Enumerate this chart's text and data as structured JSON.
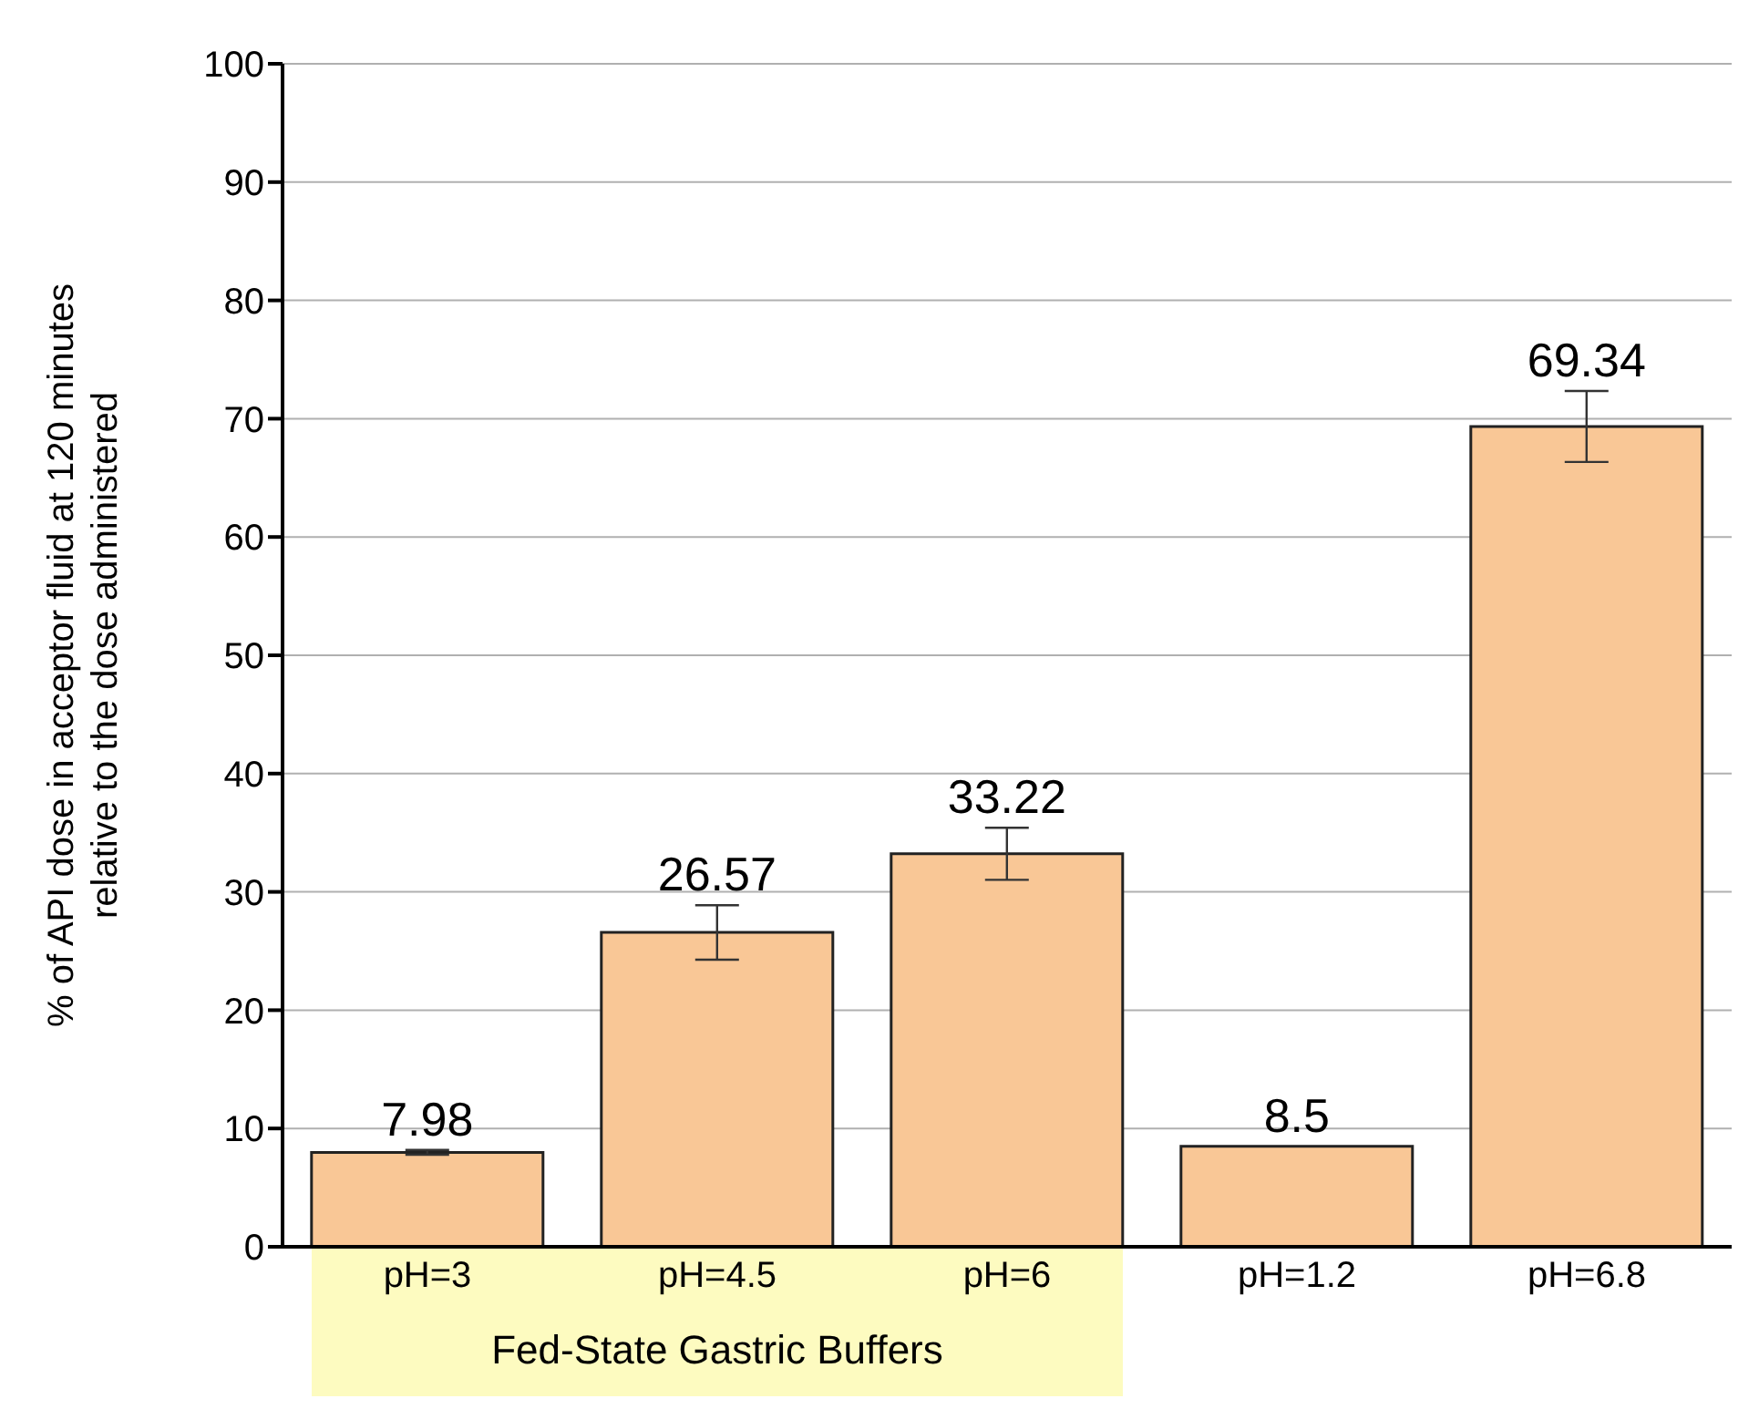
{
  "chart_data": {
    "type": "bar",
    "ylabel": "% of API dose in acceptor fluid at 120 minutes\nrelative to the dose administered",
    "categories": [
      "pH=3",
      "pH=4.5",
      "pH=6",
      "pH=1.2",
      "pH=6.8"
    ],
    "values": [
      7.98,
      26.57,
      33.22,
      8.5,
      69.34
    ],
    "errors": [
      0.2,
      2.3,
      2.2,
      null,
      3.0
    ],
    "color": "#f9c796",
    "data_labels": true,
    "ylim": [
      0,
      100
    ],
    "yticks": [
      0,
      10,
      20,
      30,
      40,
      50,
      60,
      70,
      80,
      90,
      100
    ],
    "grid": "y",
    "annotations": [
      "Fed-State Gastric Buffers"
    ]
  }
}
